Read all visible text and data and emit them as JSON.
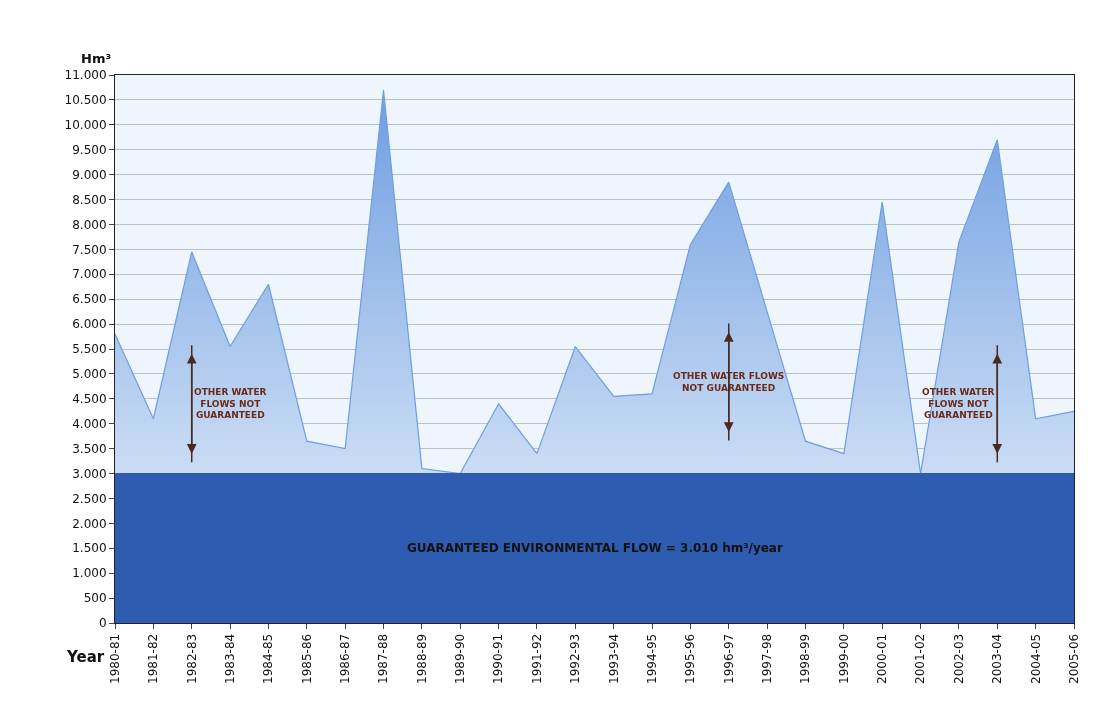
{
  "chart_data": {
    "type": "area",
    "ylabel": "Hm³",
    "xlabel": "Year",
    "categories": [
      "1980-81",
      "1981-82",
      "1982-83",
      "1983-84",
      "1984-85",
      "1985-86",
      "1986-87",
      "1987-88",
      "1988-89",
      "1989-90",
      "1990-91",
      "1991-92",
      "1992-93",
      "1993-94",
      "1994-95",
      "1995-96",
      "1996-97",
      "1997-98",
      "1998-99",
      "1999-00",
      "2000-01",
      "2001-02",
      "2002-03",
      "2003-04",
      "2004-05",
      "2005-06"
    ],
    "series": [
      {
        "color": "#6f9ee0",
        "values": [
          5800,
          4100,
          7450,
          5550,
          6800,
          3650,
          3500,
          10700,
          3100,
          3000,
          4400,
          3400,
          5550,
          4550,
          4600,
          7600,
          8850,
          6250,
          3650,
          3400,
          8450,
          3000,
          7650,
          9700,
          4100,
          4250
        ]
      }
    ],
    "ylim": [
      0,
      11000
    ],
    "yticks": [
      0,
      500,
      {
        "value": 1000,
        "label": "1.000"
      },
      {
        "value": 1500,
        "label": "1.500"
      },
      {
        "value": 2000,
        "label": "2.000"
      },
      {
        "value": 2500,
        "label": "2.500"
      },
      {
        "value": 3000,
        "label": "3.000"
      },
      {
        "value": 3500,
        "label": "3.500"
      },
      {
        "value": 4000,
        "label": "4.000"
      },
      {
        "value": 4500,
        "label": "4.500"
      },
      {
        "value": 5000,
        "label": "5.000"
      },
      {
        "value": 5500,
        "label": "5.500"
      },
      {
        "value": 6000,
        "label": "6.000"
      },
      {
        "value": 6500,
        "label": "6.500"
      },
      {
        "value": 7000,
        "label": "7.000"
      },
      {
        "value": 7500,
        "label": "7.500"
      },
      {
        "value": 8000,
        "label": "8.000"
      },
      {
        "value": 8500,
        "label": "8.500"
      },
      {
        "value": 9000,
        "label": "9.000"
      },
      {
        "value": 9500,
        "label": "9.500"
      },
      {
        "value": 10000,
        "label": "10.000"
      },
      {
        "value": 10500,
        "label": "10.500"
      },
      {
        "value": 11000,
        "label": "11.000"
      }
    ],
    "bands": [
      {
        "axis": "y",
        "from": 0,
        "to": 3010,
        "label": "GUARANTEED ENVIRONMENTAL FLOW = 3.010 hm³/year",
        "color": "#2e5cb0"
      }
    ],
    "annotations": [
      "OTHER WATER\nFLOWS NOT\nGUARANTEED",
      "OTHER WATER FLOWS\nNOT GUARANTEED",
      "OTHER WATER\nFLOWS NOT\nGUARANTEED"
    ],
    "grid": "y"
  }
}
